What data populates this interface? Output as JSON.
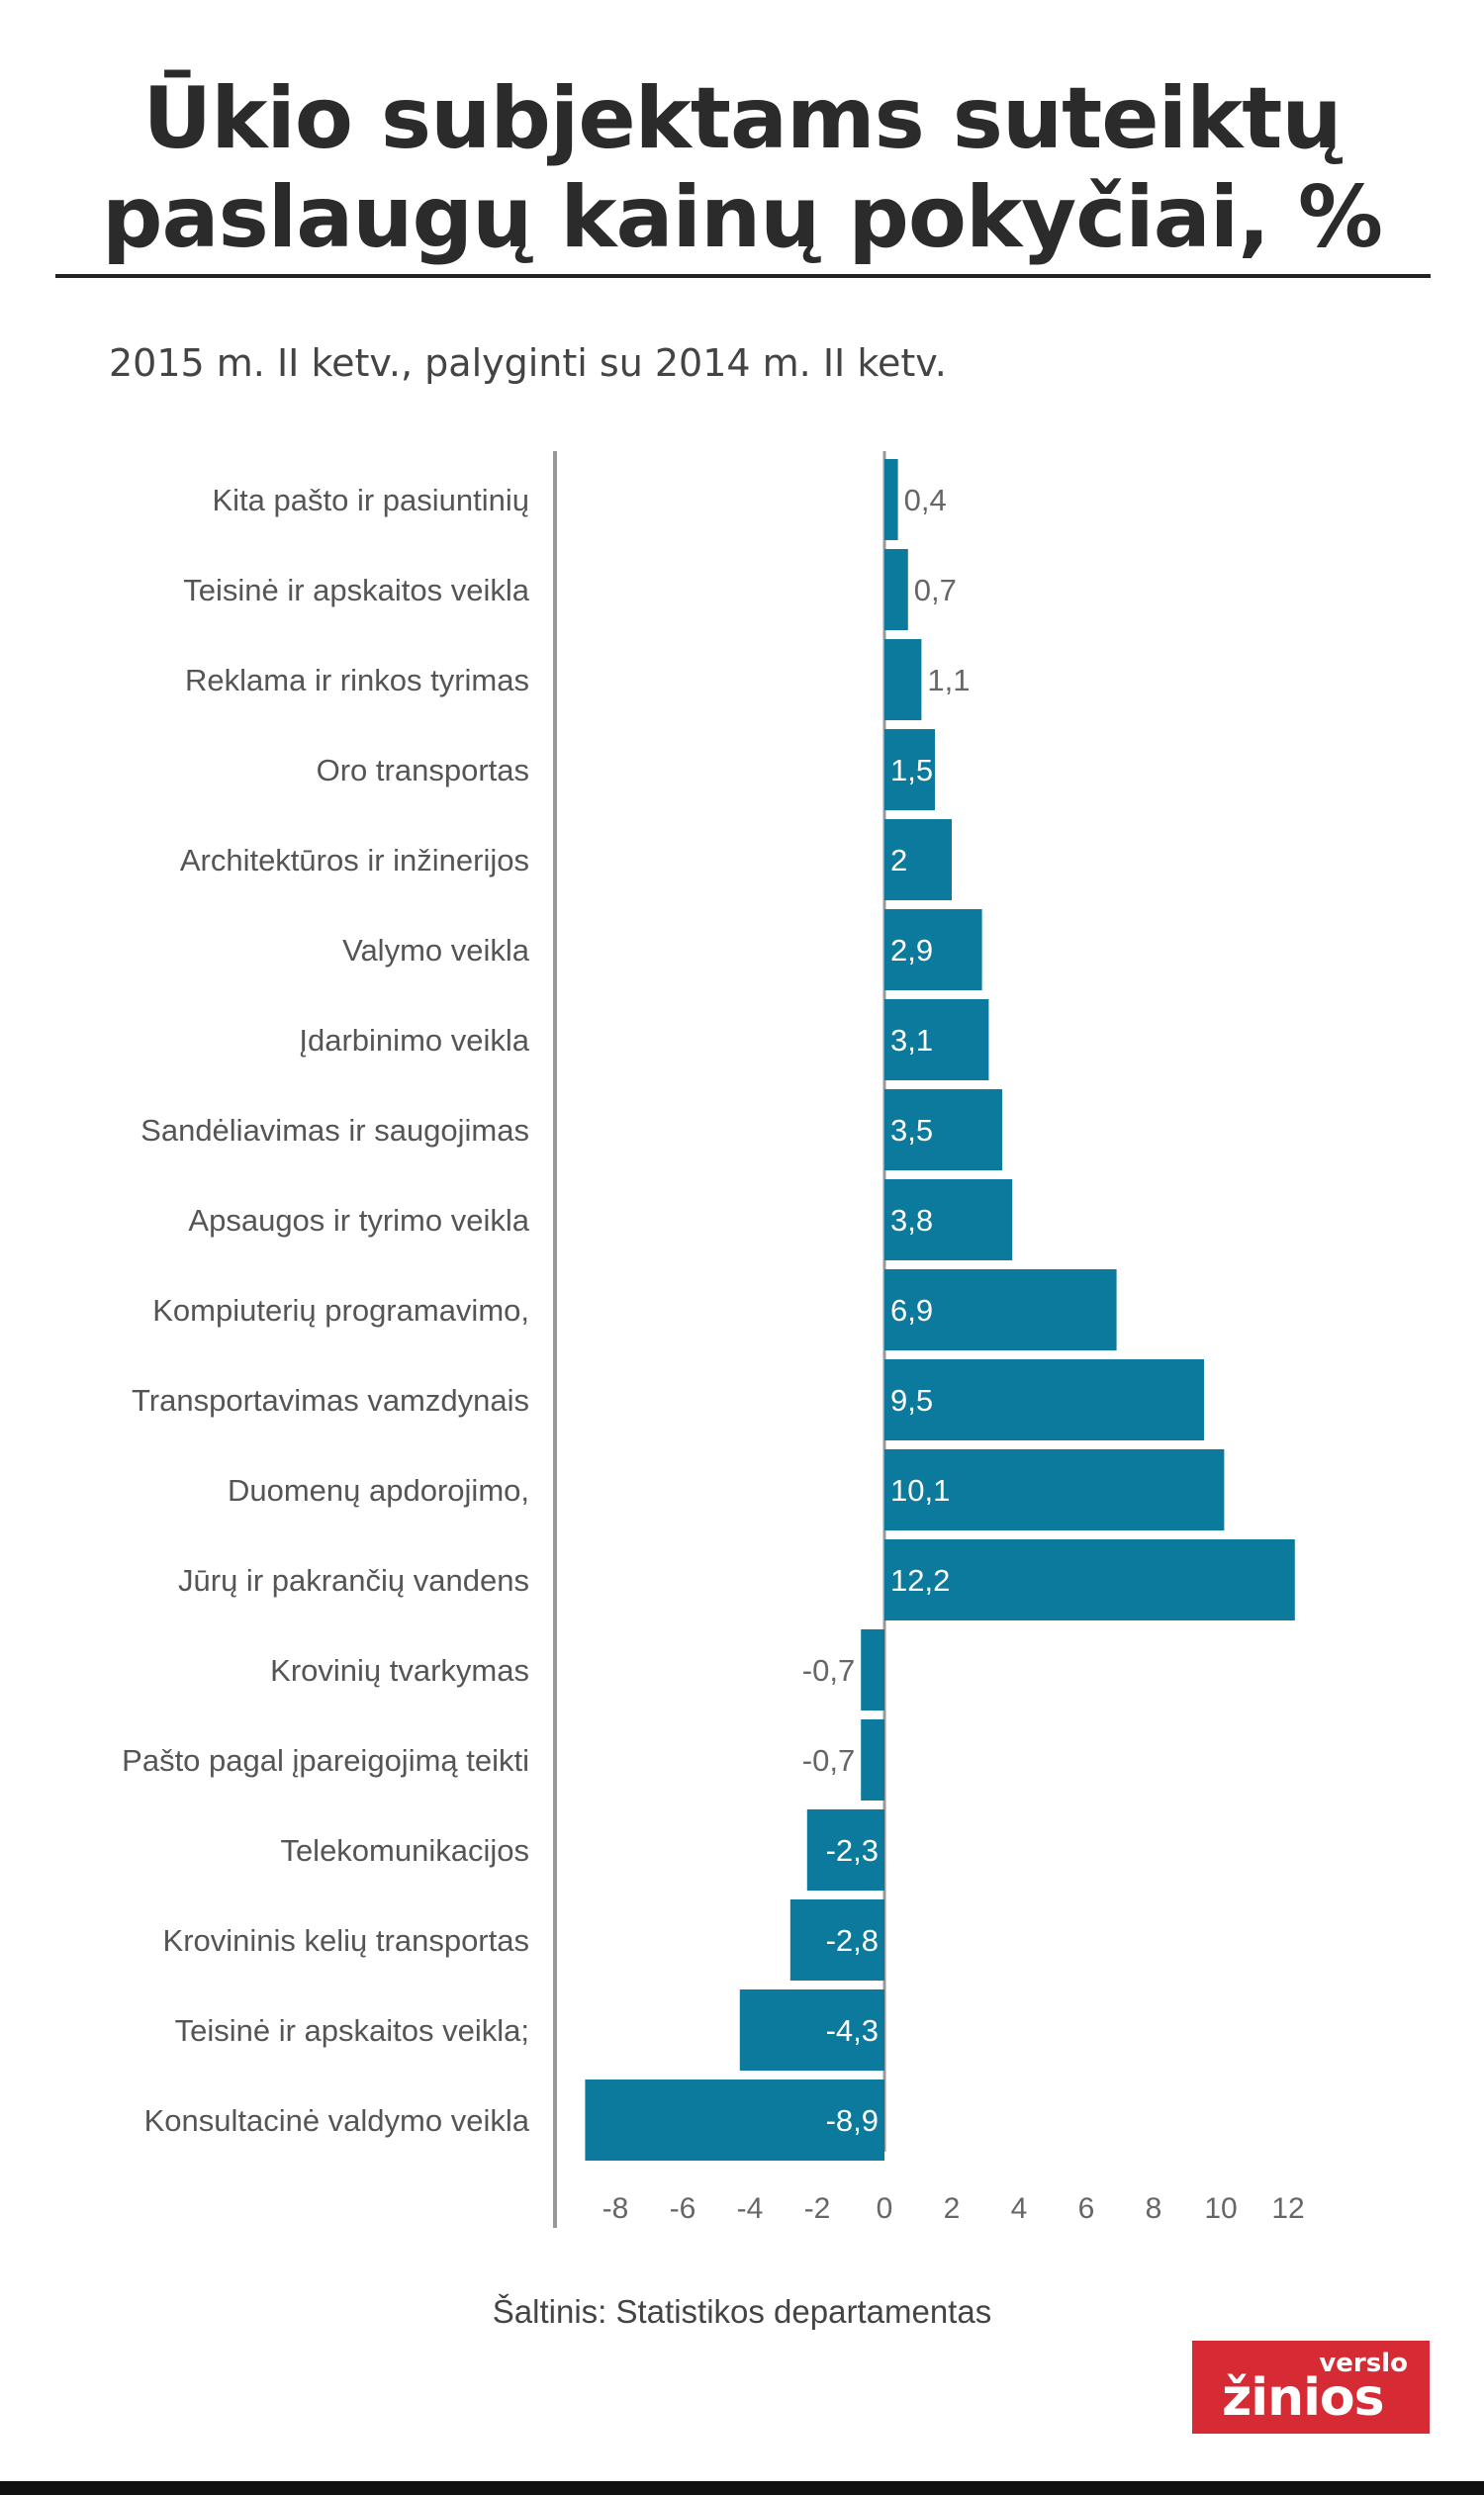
{
  "header": {
    "title_line1": "Ūkio subjektams suteiktų",
    "title_line2": "paslaugų kainų pokyčiai, %",
    "subtitle": "2015 m. II ketv., palyginti su 2014 m. II ketv."
  },
  "colors": {
    "bar": "#0c7a9c",
    "axis": "#999999",
    "label_inside": "#ffffff",
    "label_outside": "#666666"
  },
  "chart_data": {
    "type": "bar",
    "orientation": "horizontal",
    "title": "Ūkio subjektams suteiktų paslaugų kainų pokyčiai, %",
    "subtitle": "2015 m. II ketv., palyginti su 2014 m. II ketv.",
    "categories": [
      "Kita pašto ir pasiuntinių",
      "Teisinė ir apskaitos veikla",
      "Reklama ir rinkos tyrimas",
      "Oro transportas",
      "Architektūros ir inžinerijos",
      "Valymo veikla",
      "Įdarbinimo veikla",
      "Sandėliavimas ir saugojimas",
      "Apsaugos ir tyrimo veikla",
      "Kompiuterių programavimo,",
      "Transportavimas vamzdynais",
      "Duomenų apdorojimo,",
      "Jūrų ir pakrančių vandens",
      "Krovinių tvarkymas",
      "Pašto pagal įpareigojimą teikti",
      "Telekomunikacijos",
      "Krovininis kelių transportas",
      "Teisinė ir apskaitos veikla;",
      "Konsultacinė valdymo veikla"
    ],
    "values": [
      0.4,
      0.7,
      1.1,
      1.5,
      2,
      2.9,
      3.1,
      3.5,
      3.8,
      6.9,
      9.5,
      10.1,
      12.2,
      -0.7,
      -0.7,
      -2.3,
      -2.8,
      -4.3,
      -8.9
    ],
    "value_labels": [
      "0,4",
      "0,7",
      "1,1",
      "1,5",
      "2",
      "2,9",
      "3,1",
      "3,5",
      "3,8",
      "6,9",
      "9,5",
      "10,1",
      "12,2",
      "-0,7",
      "-0,7",
      "-2,3",
      "-2,8",
      "-4,3",
      "-8,9"
    ],
    "xlim": [
      -9,
      13
    ],
    "xticks": [
      -8,
      -6,
      -4,
      -2,
      0,
      2,
      4,
      6,
      8,
      10,
      12
    ],
    "xtick_labels": [
      "-8",
      "-6",
      "-4",
      "-2",
      "0",
      "2",
      "4",
      "6",
      "8",
      "10",
      "12"
    ],
    "grid": false,
    "legend": "none"
  },
  "footer": {
    "source": "Šaltinis: Statistikos departamentas",
    "logo_top": "verslo",
    "logo_main": "žinios"
  }
}
